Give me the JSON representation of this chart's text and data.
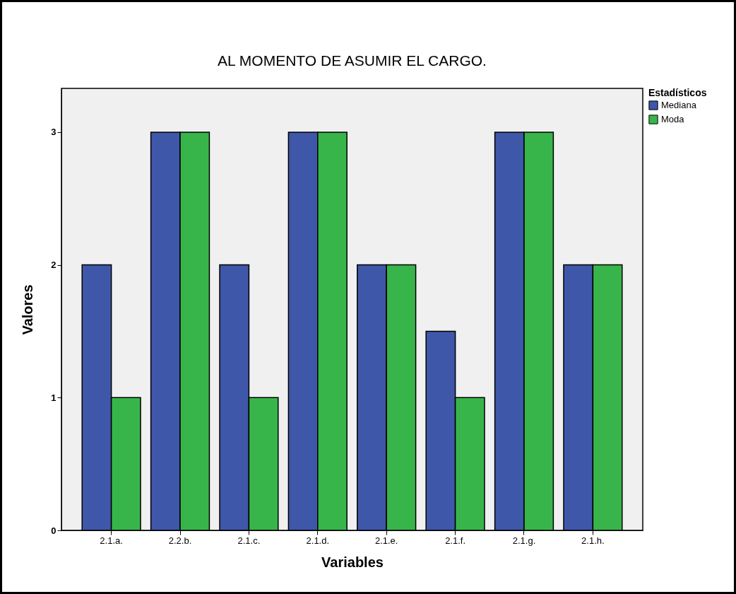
{
  "chart_data": {
    "type": "bar",
    "title": "AL MOMENTO DE ASUMIR EL CARGO.",
    "xlabel": "Variables",
    "ylabel": "Valores",
    "legend_title": "Estadísticos",
    "categories": [
      "2.1.a.",
      "2.2.b.",
      "2.1.c.",
      "2.1.d.",
      "2.1.e.",
      "2.1.f.",
      "2.1.g.",
      "2.1.h."
    ],
    "series": [
      {
        "name": "Mediana",
        "color": "#3f57a8",
        "values": [
          2,
          3,
          2,
          3,
          2,
          1.5,
          3,
          2
        ]
      },
      {
        "name": "Moda",
        "color": "#38b54a",
        "values": [
          1,
          3,
          1,
          3,
          2,
          1,
          3,
          2
        ]
      }
    ],
    "ylim": [
      0,
      3.33
    ],
    "yticks": [
      0,
      1,
      2,
      3
    ],
    "grid": false,
    "legend": "top right"
  }
}
